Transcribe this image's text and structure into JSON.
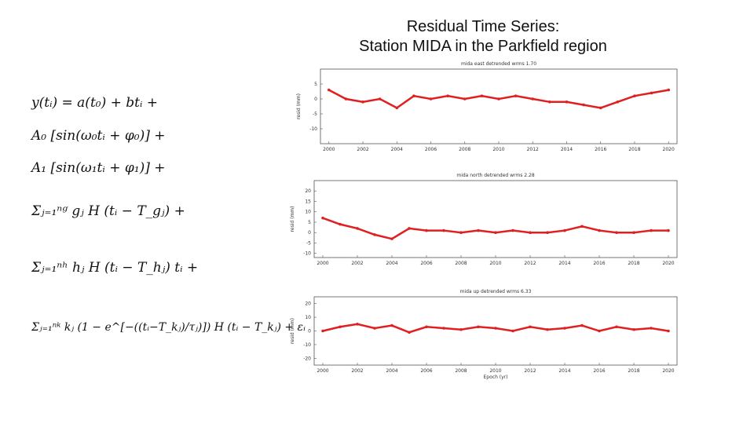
{
  "title": [
    "Residual Time Series:",
    "Station MIDA in the Parkfield region"
  ],
  "equations": [
    "y(tᵢ) = a(t₀) + btᵢ +",
    "A₀ [sin(ω₀tᵢ + φ₀)] +",
    "A₁ [sin(ω₁tᵢ + φ₁)] +",
    "Σⱼ₌₁ⁿᵍ gⱼ H (tᵢ − T_gⱼ) +",
    "Σⱼ₌₁ⁿʰ hⱼ H (tᵢ − T_hⱼ) tᵢ +",
    "Σⱼ₌₁ⁿᵏ kⱼ (1 − e^[−((tᵢ−T_kⱼ)/τⱼ)]) H (tᵢ − T_kⱼ) + εᵢ"
  ],
  "chart_data": [
    {
      "type": "line",
      "title": "mida east detrended wrms 1.70",
      "ylabel": "resid (mm)",
      "color": "#e02020",
      "x": [
        2000,
        2001,
        2002,
        2003,
        2004,
        2005,
        2006,
        2007,
        2008,
        2009,
        2010,
        2011,
        2012,
        2013,
        2014,
        2015,
        2016,
        2017,
        2018,
        2019,
        2020
      ],
      "values": [
        3,
        0,
        -1,
        0,
        -3,
        1,
        0,
        1,
        0,
        1,
        0,
        1,
        0,
        -1,
        -1,
        -2,
        -3,
        -1,
        1,
        2,
        3
      ],
      "xlim": [
        1999.5,
        2020.5
      ],
      "xticks": [
        2000,
        2002,
        2004,
        2006,
        2008,
        2010,
        2012,
        2014,
        2016,
        2018,
        2020
      ],
      "ylim": [
        -15,
        10
      ],
      "yticks": [
        5,
        0,
        -5,
        -10
      ]
    },
    {
      "type": "line",
      "title": "mida north detrended wrms 2.28",
      "ylabel": "resid (mm)",
      "color": "#e02020",
      "x": [
        2000,
        2001,
        2002,
        2003,
        2004,
        2005,
        2006,
        2007,
        2008,
        2009,
        2010,
        2011,
        2012,
        2013,
        2014,
        2015,
        2016,
        2017,
        2018,
        2019,
        2020
      ],
      "values": [
        7,
        4,
        2,
        -1,
        -3,
        2,
        1,
        1,
        0,
        1,
        0,
        1,
        0,
        0,
        1,
        3,
        1,
        0,
        0,
        1,
        1
      ],
      "xlim": [
        1999.5,
        2020.5
      ],
      "xticks": [
        2000,
        2002,
        2004,
        2006,
        2008,
        2010,
        2012,
        2014,
        2016,
        2018,
        2020
      ],
      "ylim": [
        -12,
        25
      ],
      "yticks": [
        20,
        15,
        10,
        5,
        0,
        -5,
        -10
      ]
    },
    {
      "type": "line",
      "title": "mida up detrended wrms 6.33",
      "ylabel": "resid (mm)",
      "xlabel": "Epoch (yr)",
      "color": "#e02020",
      "x": [
        2000,
        2001,
        2002,
        2003,
        2004,
        2005,
        2006,
        2007,
        2008,
        2009,
        2010,
        2011,
        2012,
        2013,
        2014,
        2015,
        2016,
        2017,
        2018,
        2019,
        2020
      ],
      "values": [
        0,
        3,
        5,
        2,
        4,
        -1,
        3,
        2,
        1,
        3,
        2,
        0,
        3,
        1,
        2,
        4,
        0,
        3,
        1,
        2,
        0
      ],
      "xlim": [
        1999.5,
        2020.5
      ],
      "xticks": [
        2000,
        2002,
        2004,
        2006,
        2008,
        2010,
        2012,
        2014,
        2016,
        2018,
        2020
      ],
      "ylim": [
        -25,
        25
      ],
      "yticks": [
        20,
        10,
        0,
        -10,
        -20
      ]
    }
  ]
}
